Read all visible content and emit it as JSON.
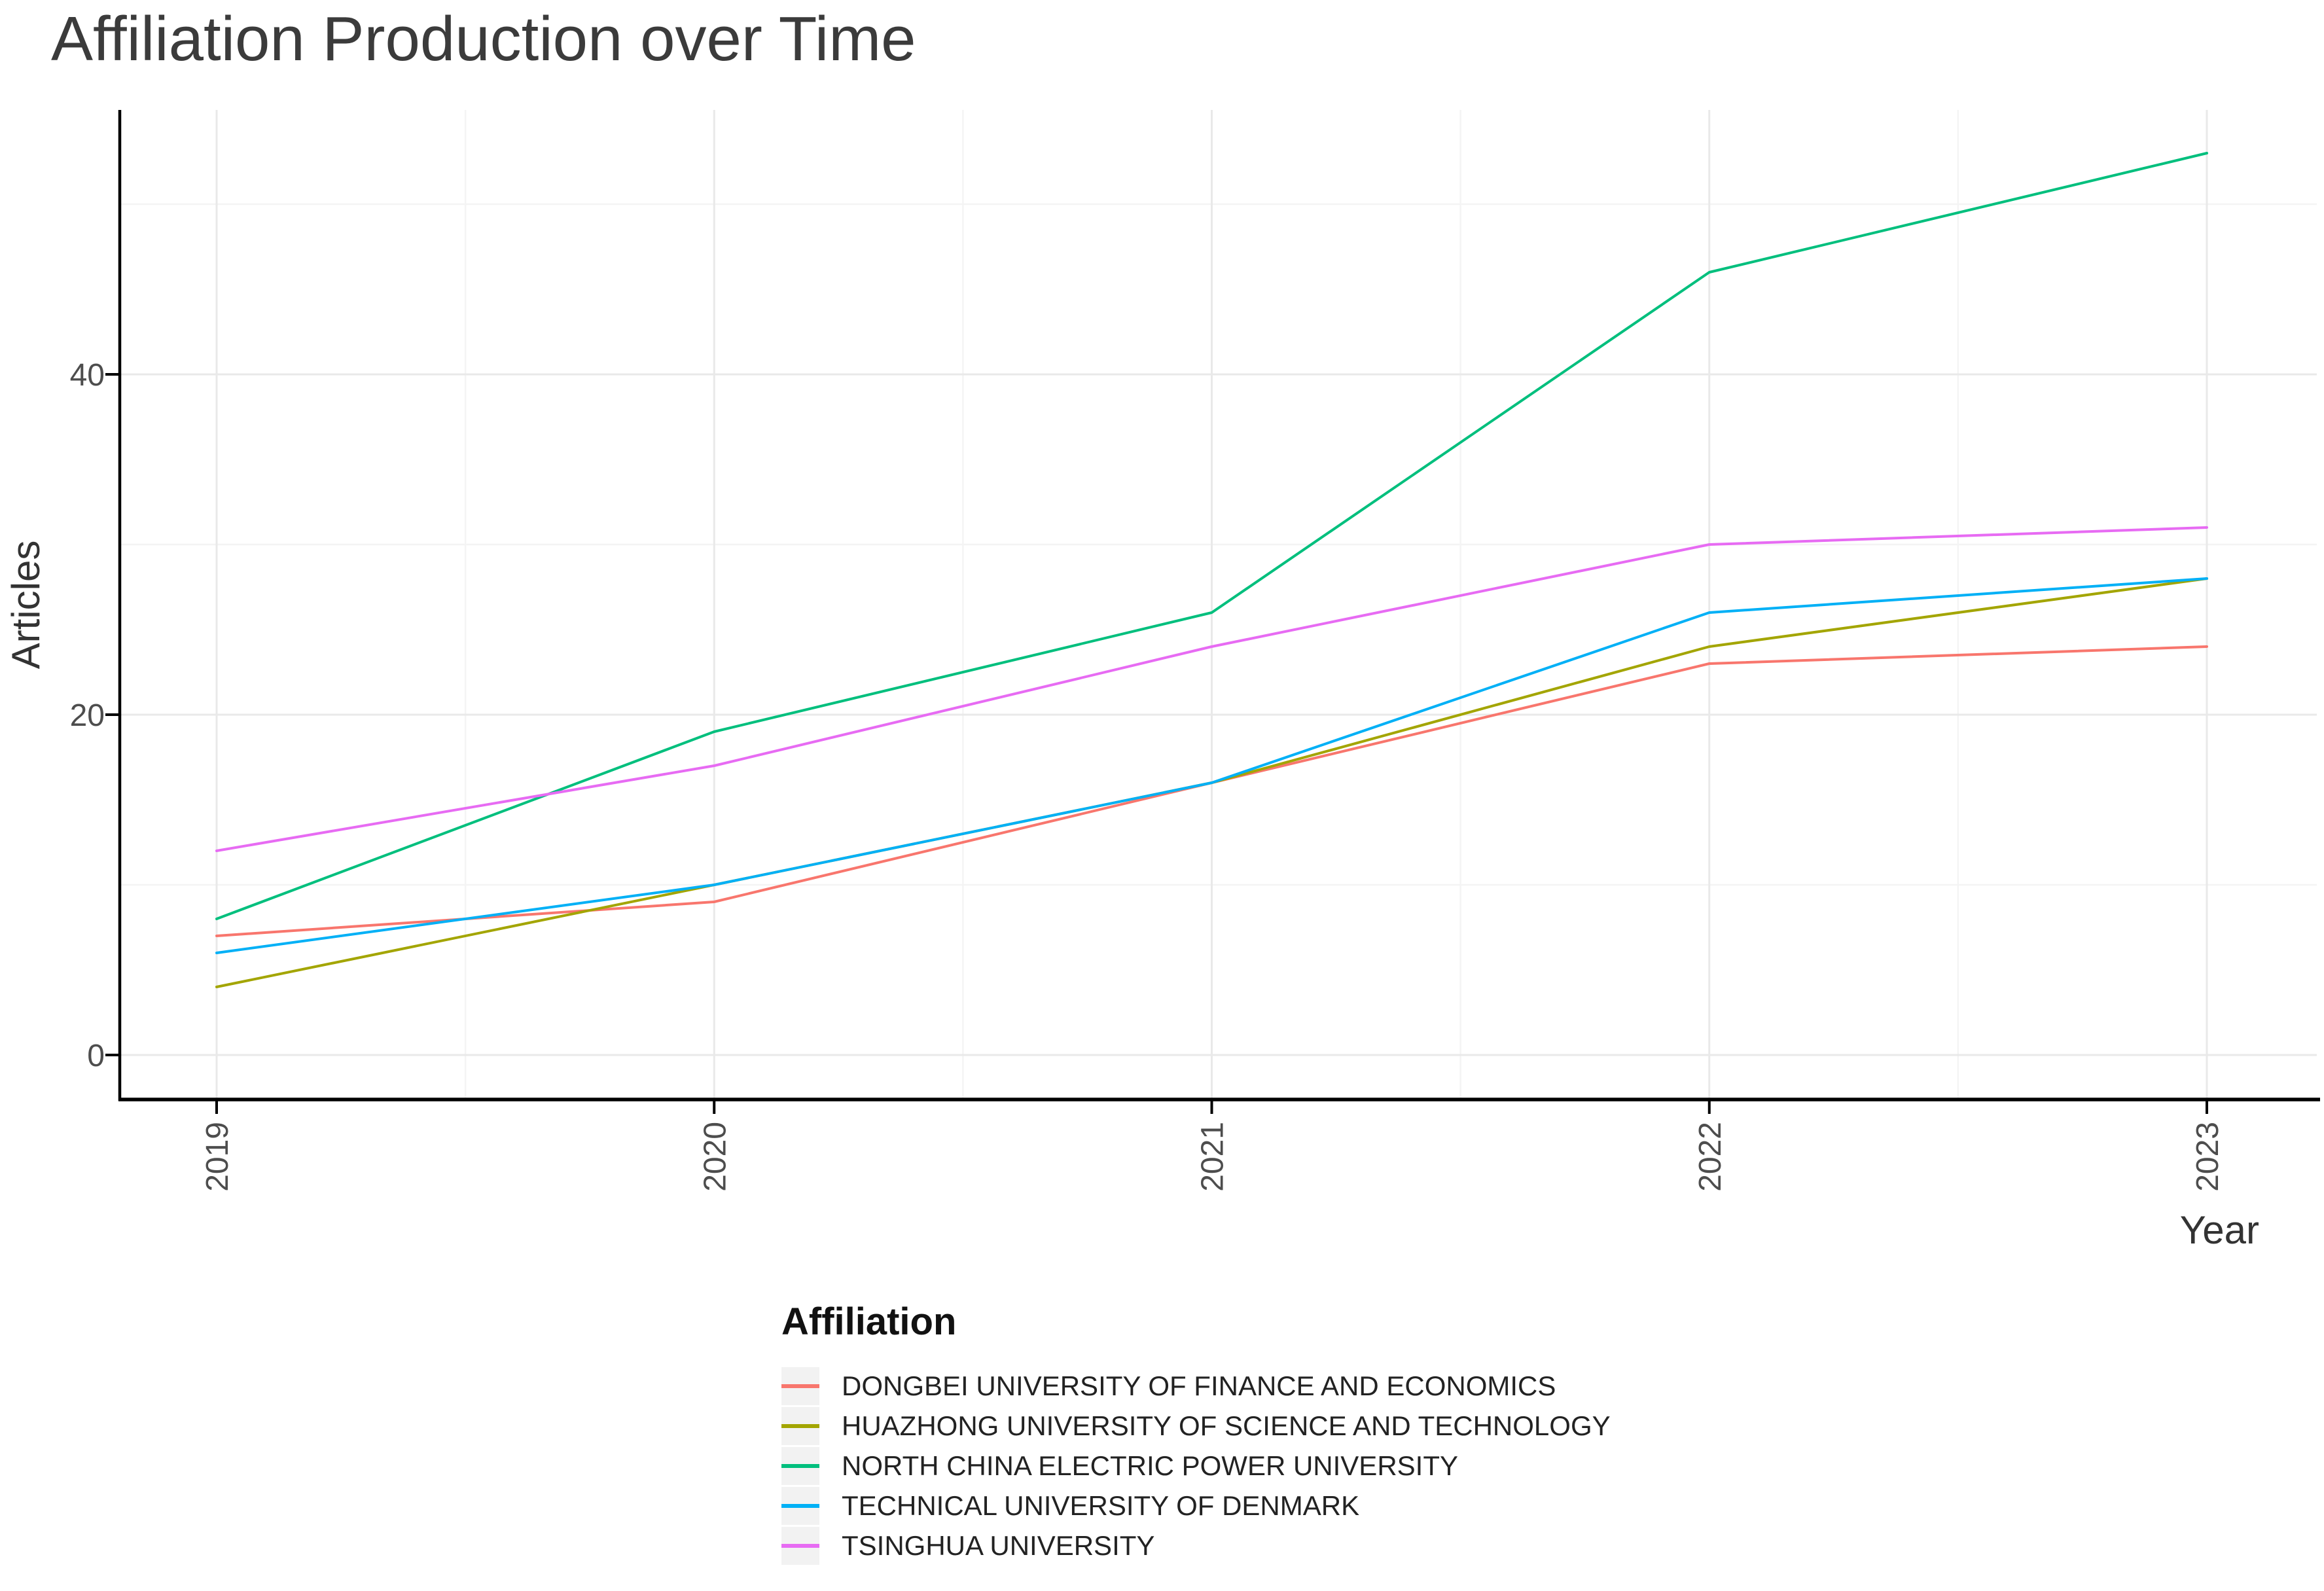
{
  "title": "Affiliation Production over Time",
  "legend": {
    "title": "Affiliation"
  },
  "chart_data": {
    "type": "line",
    "title": "Affiliation Production over Time",
    "xlabel": "Year",
    "ylabel": "Articles",
    "x": [
      2019,
      2020,
      2021,
      2022,
      2023
    ],
    "yticks": [
      0,
      20,
      40
    ],
    "yminor": [
      10,
      30,
      50
    ],
    "ylim": [
      -2.5,
      55.5
    ],
    "grid": "major and minor light-gray gridlines on white panel",
    "legend_title": "Affiliation",
    "legend_position": "bottom",
    "axis_color": "#000000",
    "tick_label_color": "#4d4d4d",
    "major_grid_color": "#e9e9e9",
    "minor_grid_color": "#f4f4f4",
    "series": [
      {
        "name": "DONGBEI UNIVERSITY OF FINANCE AND ECONOMICS",
        "color": "#F8766D",
        "values": [
          7,
          9,
          16,
          23,
          24
        ]
      },
      {
        "name": "HUAZHONG UNIVERSITY OF SCIENCE AND TECHNOLOGY",
        "color": "#A3A500",
        "values": [
          4,
          10,
          16,
          24,
          28
        ]
      },
      {
        "name": "NORTH CHINA ELECTRIC POWER UNIVERSITY",
        "color": "#00BF7D",
        "values": [
          8,
          19,
          26,
          46,
          53
        ]
      },
      {
        "name": "TECHNICAL UNIVERSITY OF DENMARK",
        "color": "#00B0F6",
        "values": [
          6,
          10,
          16,
          26,
          28
        ]
      },
      {
        "name": "TSINGHUA UNIVERSITY",
        "color": "#E76BF3",
        "values": [
          12,
          17,
          24,
          30,
          31
        ]
      }
    ]
  }
}
